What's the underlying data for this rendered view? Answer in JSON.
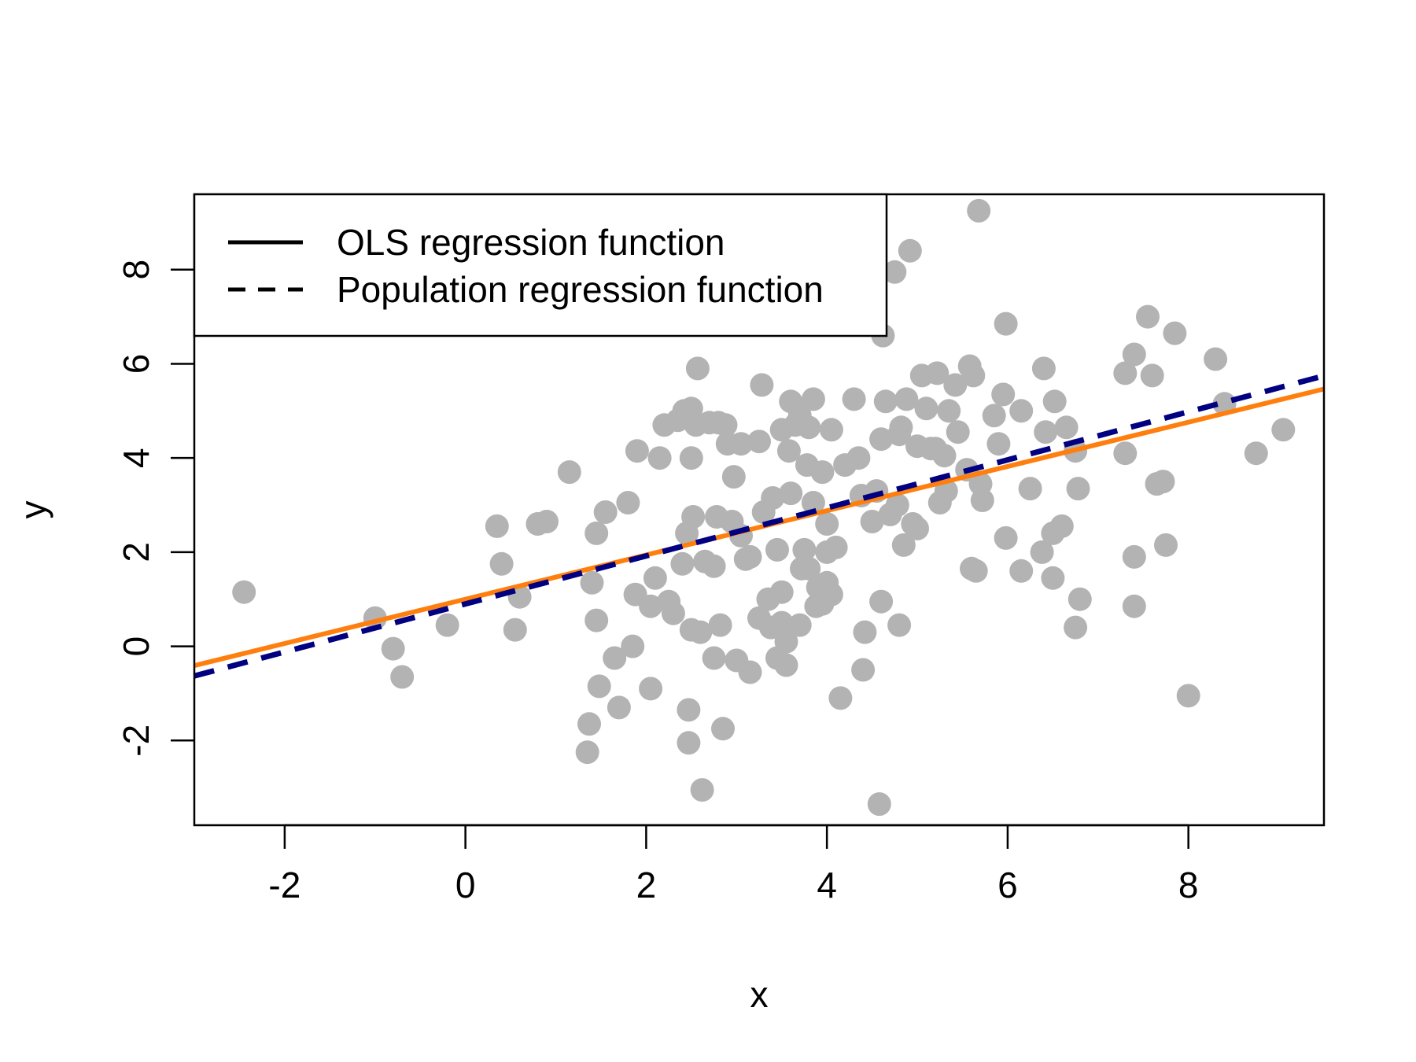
{
  "chart_data": {
    "type": "scatter",
    "title": "",
    "xlabel": "x",
    "ylabel": "y",
    "xlim": [
      -3,
      9.5
    ],
    "ylim": [
      -3.8,
      9.6
    ],
    "x_ticks": [
      "-2",
      "0",
      "2",
      "4",
      "6",
      "8"
    ],
    "y_ticks": [
      "-2",
      "0",
      "2",
      "4",
      "6",
      "8"
    ],
    "grid": false,
    "legend_position": "top-left",
    "colors": {
      "points": "#b3b3b3",
      "ols_line": "#ff7f0e",
      "population_line": "#000080"
    },
    "legend": [
      {
        "label": "OLS regression function",
        "style": "solid"
      },
      {
        "label": "Population regression function",
        "style": "dashed"
      }
    ],
    "lines": {
      "ols": {
        "intercept": 1.0,
        "slope": 0.47
      },
      "population": {
        "intercept": 0.9,
        "slope": 0.51
      }
    },
    "points": [
      [
        -2.45,
        1.15
      ],
      [
        -1.0,
        0.6
      ],
      [
        -0.8,
        -0.05
      ],
      [
        -0.7,
        -0.65
      ],
      [
        -0.2,
        0.45
      ],
      [
        0.35,
        2.55
      ],
      [
        0.4,
        1.75
      ],
      [
        0.55,
        0.35
      ],
      [
        0.6,
        1.05
      ],
      [
        0.8,
        2.6
      ],
      [
        0.9,
        2.65
      ],
      [
        1.15,
        3.7
      ],
      [
        1.35,
        -2.25
      ],
      [
        1.37,
        -1.65
      ],
      [
        1.4,
        1.35
      ],
      [
        1.45,
        2.4
      ],
      [
        1.45,
        0.55
      ],
      [
        1.48,
        -0.85
      ],
      [
        1.55,
        2.85
      ],
      [
        1.65,
        -0.25
      ],
      [
        1.7,
        -1.3
      ],
      [
        1.8,
        3.05
      ],
      [
        1.85,
        0.0
      ],
      [
        1.88,
        1.1
      ],
      [
        1.9,
        4.15
      ],
      [
        2.05,
        -0.9
      ],
      [
        2.05,
        0.85
      ],
      [
        2.1,
        1.45
      ],
      [
        2.15,
        4.0
      ],
      [
        2.2,
        4.7
      ],
      [
        2.25,
        0.95
      ],
      [
        2.3,
        0.7
      ],
      [
        2.35,
        4.8
      ],
      [
        2.4,
        1.75
      ],
      [
        2.42,
        5.0
      ],
      [
        2.45,
        2.4
      ],
      [
        2.47,
        -2.05
      ],
      [
        2.47,
        -1.35
      ],
      [
        2.5,
        4.0
      ],
      [
        2.5,
        5.05
      ],
      [
        2.5,
        0.35
      ],
      [
        2.52,
        2.75
      ],
      [
        2.55,
        4.7
      ],
      [
        2.57,
        5.9
      ],
      [
        2.6,
        0.3
      ],
      [
        2.62,
        -3.05
      ],
      [
        2.65,
        1.8
      ],
      [
        2.7,
        4.75
      ],
      [
        2.75,
        1.7
      ],
      [
        2.75,
        -0.25
      ],
      [
        2.78,
        2.75
      ],
      [
        2.8,
        4.75
      ],
      [
        2.82,
        0.45
      ],
      [
        2.85,
        -1.75
      ],
      [
        2.88,
        4.7
      ],
      [
        2.9,
        4.3
      ],
      [
        2.95,
        2.65
      ],
      [
        2.97,
        3.6
      ],
      [
        3.0,
        -0.3
      ],
      [
        3.05,
        4.3
      ],
      [
        3.05,
        2.35
      ],
      [
        3.1,
        1.85
      ],
      [
        3.15,
        1.9
      ],
      [
        3.15,
        -0.55
      ],
      [
        3.25,
        0.6
      ],
      [
        3.25,
        4.35
      ],
      [
        3.28,
        5.55
      ],
      [
        3.3,
        2.85
      ],
      [
        3.35,
        1.0
      ],
      [
        3.38,
        0.4
      ],
      [
        3.4,
        3.15
      ],
      [
        3.45,
        -0.25
      ],
      [
        3.45,
        2.05
      ],
      [
        3.5,
        1.15
      ],
      [
        3.5,
        4.6
      ],
      [
        3.5,
        0.5
      ],
      [
        3.55,
        0.1
      ],
      [
        3.55,
        -0.4
      ],
      [
        3.58,
        4.15
      ],
      [
        3.6,
        3.25
      ],
      [
        3.6,
        5.2
      ],
      [
        3.65,
        4.7
      ],
      [
        3.7,
        0.45
      ],
      [
        3.7,
        4.9
      ],
      [
        3.72,
        1.65
      ],
      [
        3.75,
        2.05
      ],
      [
        3.78,
        3.85
      ],
      [
        3.8,
        1.65
      ],
      [
        3.8,
        4.65
      ],
      [
        3.85,
        3.05
      ],
      [
        3.85,
        5.25
      ],
      [
        3.88,
        0.85
      ],
      [
        3.9,
        1.25
      ],
      [
        3.95,
        3.7
      ],
      [
        3.95,
        0.9
      ],
      [
        4.0,
        2.6
      ],
      [
        4.0,
        1.35
      ],
      [
        4.0,
        2.0
      ],
      [
        4.05,
        1.1
      ],
      [
        4.05,
        4.6
      ],
      [
        4.1,
        2.1
      ],
      [
        4.15,
        -1.1
      ],
      [
        4.2,
        3.85
      ],
      [
        4.3,
        5.25
      ],
      [
        4.35,
        4.0
      ],
      [
        4.38,
        3.2
      ],
      [
        4.4,
        -0.5
      ],
      [
        4.42,
        0.3
      ],
      [
        4.5,
        2.65
      ],
      [
        4.55,
        3.3
      ],
      [
        4.58,
        -3.35
      ],
      [
        4.6,
        0.95
      ],
      [
        4.6,
        4.4
      ],
      [
        4.62,
        6.6
      ],
      [
        4.65,
        5.2
      ],
      [
        4.7,
        2.8
      ],
      [
        4.75,
        7.95
      ],
      [
        4.78,
        3.0
      ],
      [
        4.8,
        4.5
      ],
      [
        4.8,
        0.45
      ],
      [
        4.82,
        4.65
      ],
      [
        4.85,
        2.15
      ],
      [
        4.88,
        5.25
      ],
      [
        4.92,
        8.4
      ],
      [
        4.95,
        2.6
      ],
      [
        5.0,
        4.25
      ],
      [
        5.0,
        2.5
      ],
      [
        5.05,
        5.75
      ],
      [
        5.1,
        5.05
      ],
      [
        5.15,
        4.2
      ],
      [
        5.2,
        4.2
      ],
      [
        5.22,
        5.8
      ],
      [
        5.25,
        3.05
      ],
      [
        5.3,
        4.05
      ],
      [
        5.32,
        3.3
      ],
      [
        5.35,
        5.0
      ],
      [
        5.42,
        5.55
      ],
      [
        5.45,
        4.55
      ],
      [
        5.55,
        3.75
      ],
      [
        5.58,
        5.95
      ],
      [
        5.6,
        1.65
      ],
      [
        5.62,
        5.75
      ],
      [
        5.65,
        1.6
      ],
      [
        5.68,
        9.25
      ],
      [
        5.7,
        3.45
      ],
      [
        5.72,
        3.1
      ],
      [
        5.85,
        4.9
      ],
      [
        5.9,
        4.3
      ],
      [
        5.95,
        5.35
      ],
      [
        5.98,
        2.3
      ],
      [
        5.98,
        6.85
      ],
      [
        6.15,
        1.6
      ],
      [
        6.15,
        5.0
      ],
      [
        6.25,
        3.35
      ],
      [
        6.38,
        2.0
      ],
      [
        6.4,
        5.9
      ],
      [
        6.42,
        4.55
      ],
      [
        6.5,
        1.45
      ],
      [
        6.5,
        2.4
      ],
      [
        6.52,
        5.2
      ],
      [
        6.6,
        2.55
      ],
      [
        6.65,
        4.65
      ],
      [
        6.75,
        4.15
      ],
      [
        6.75,
        0.4
      ],
      [
        6.78,
        3.35
      ],
      [
        6.8,
        1.0
      ],
      [
        7.3,
        4.1
      ],
      [
        7.3,
        5.8
      ],
      [
        7.4,
        6.2
      ],
      [
        7.4,
        0.85
      ],
      [
        7.4,
        1.9
      ],
      [
        7.55,
        7.0
      ],
      [
        7.6,
        5.75
      ],
      [
        7.65,
        3.45
      ],
      [
        7.72,
        3.5
      ],
      [
        7.75,
        2.15
      ],
      [
        7.85,
        6.65
      ],
      [
        8.0,
        -1.05
      ],
      [
        8.3,
        6.1
      ],
      [
        8.4,
        5.15
      ],
      [
        8.75,
        4.1
      ],
      [
        9.05,
        4.6
      ]
    ]
  }
}
